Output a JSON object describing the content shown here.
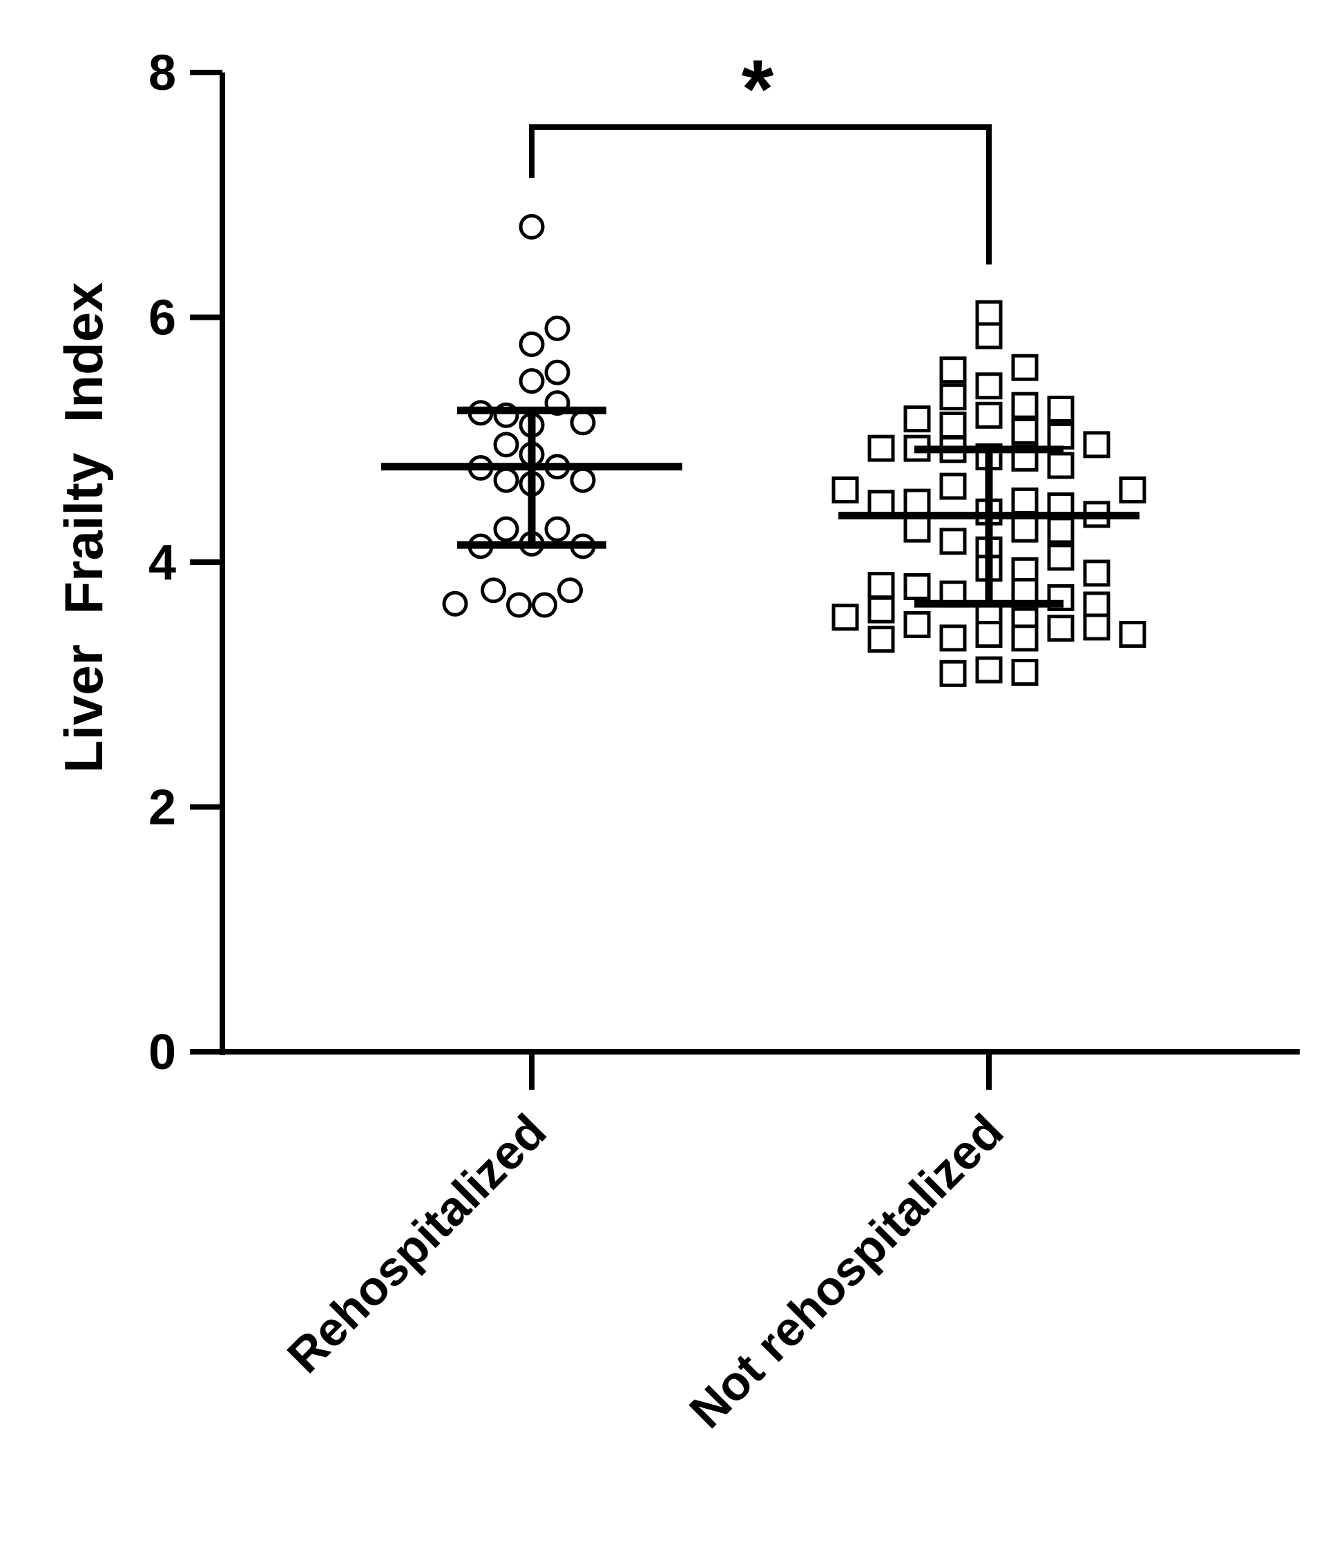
{
  "chart_data": {
    "type": "scatter",
    "ylabel": "Liver  Frailty  Index",
    "xlabel": "",
    "ylim": [
      0,
      8
    ],
    "yticks": [
      0,
      2,
      4,
      6,
      8
    ],
    "categories": [
      "Rehospitalized",
      "Not rehospitalized"
    ],
    "grid": false,
    "significance": {
      "label": "*",
      "between": [
        0,
        1
      ]
    },
    "series": [
      {
        "category": "Rehospitalized",
        "marker": "circle",
        "mean": 4.78,
        "sd_low": 4.14,
        "sd_high": 5.24,
        "points": [
          {
            "o": 0,
            "y": 6.74
          },
          {
            "o": 1,
            "y": 5.91
          },
          {
            "o": 0,
            "y": 5.78
          },
          {
            "o": 1,
            "y": 5.55
          },
          {
            "o": 0,
            "y": 5.48
          },
          {
            "o": 1,
            "y": 5.3
          },
          {
            "o": -2,
            "y": 5.22
          },
          {
            "o": -1,
            "y": 5.2
          },
          {
            "o": 0,
            "y": 5.12
          },
          {
            "o": 2,
            "y": 5.14
          },
          {
            "o": -1,
            "y": 4.96
          },
          {
            "o": 0,
            "y": 4.88
          },
          {
            "o": -2,
            "y": 4.77
          },
          {
            "o": 1,
            "y": 4.78
          },
          {
            "o": -1,
            "y": 4.67
          },
          {
            "o": 0,
            "y": 4.64
          },
          {
            "o": 2,
            "y": 4.67
          },
          {
            "o": -1,
            "y": 4.27
          },
          {
            "o": 1,
            "y": 4.27
          },
          {
            "o": -2,
            "y": 4.13
          },
          {
            "o": 0,
            "y": 4.15
          },
          {
            "o": 2,
            "y": 4.13
          },
          {
            "o": -1.5,
            "y": 3.77
          },
          {
            "o": 1.5,
            "y": 3.77
          },
          {
            "o": -0.5,
            "y": 3.65
          },
          {
            "o": 0.5,
            "y": 3.65
          },
          {
            "o": -3,
            "y": 3.66
          }
        ]
      },
      {
        "category": "Not rehospitalized",
        "marker": "square",
        "mean": 4.38,
        "sd_low": 3.66,
        "sd_high": 4.92,
        "points": [
          {
            "o": 0,
            "y": 6.03
          },
          {
            "o": 0,
            "y": 5.85
          },
          {
            "o": -1,
            "y": 5.57
          },
          {
            "o": 1,
            "y": 5.59
          },
          {
            "o": 0,
            "y": 5.44
          },
          {
            "o": -1,
            "y": 5.35
          },
          {
            "o": 1,
            "y": 5.28
          },
          {
            "o": 2,
            "y": 5.25
          },
          {
            "o": 0,
            "y": 5.2
          },
          {
            "o": -2,
            "y": 5.17
          },
          {
            "o": -1,
            "y": 5.12
          },
          {
            "o": 1,
            "y": 5.07
          },
          {
            "o": 2,
            "y": 5.03
          },
          {
            "o": 3,
            "y": 4.96
          },
          {
            "o": -3,
            "y": 4.93
          },
          {
            "o": -2,
            "y": 4.93
          },
          {
            "o": -1,
            "y": 4.92
          },
          {
            "o": 0,
            "y": 4.86
          },
          {
            "o": 1,
            "y": 4.85
          },
          {
            "o": 2,
            "y": 4.79
          },
          {
            "o": -1,
            "y": 4.62
          },
          {
            "o": -4,
            "y": 4.59
          },
          {
            "o": 4,
            "y": 4.59
          },
          {
            "o": 1,
            "y": 4.5
          },
          {
            "o": -2,
            "y": 4.49
          },
          {
            "o": -3,
            "y": 4.48
          },
          {
            "o": 2,
            "y": 4.46
          },
          {
            "o": 0,
            "y": 4.41
          },
          {
            "o": 3,
            "y": 4.39
          },
          {
            "o": -2,
            "y": 4.27
          },
          {
            "o": 1,
            "y": 4.27
          },
          {
            "o": 2,
            "y": 4.26
          },
          {
            "o": -1,
            "y": 4.17
          },
          {
            "o": 0,
            "y": 4.1
          },
          {
            "o": 2,
            "y": 4.04
          },
          {
            "o": 0,
            "y": 3.95
          },
          {
            "o": 1,
            "y": 3.93
          },
          {
            "o": 3,
            "y": 3.91
          },
          {
            "o": -3,
            "y": 3.81
          },
          {
            "o": -2,
            "y": 3.8
          },
          {
            "o": -1,
            "y": 3.74
          },
          {
            "o": 1,
            "y": 3.76
          },
          {
            "o": 2,
            "y": 3.71
          },
          {
            "o": 3,
            "y": 3.65
          },
          {
            "o": -3,
            "y": 3.61
          },
          {
            "o": -4,
            "y": 3.55
          },
          {
            "o": 0,
            "y": 3.56
          },
          {
            "o": 1,
            "y": 3.52
          },
          {
            "o": -2,
            "y": 3.49
          },
          {
            "o": 2,
            "y": 3.46
          },
          {
            "o": 3,
            "y": 3.47
          },
          {
            "o": -3,
            "y": 3.37
          },
          {
            "o": -1,
            "y": 3.38
          },
          {
            "o": 0,
            "y": 3.41
          },
          {
            "o": 1,
            "y": 3.38
          },
          {
            "o": 4,
            "y": 3.41
          },
          {
            "o": -1,
            "y": 3.09
          },
          {
            "o": 0,
            "y": 3.12
          },
          {
            "o": 1,
            "y": 3.1
          }
        ]
      }
    ]
  }
}
